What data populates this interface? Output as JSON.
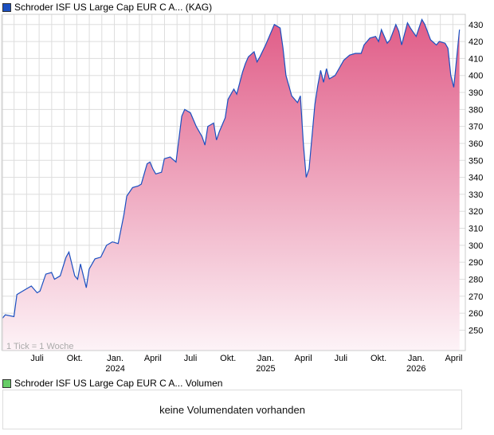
{
  "legend_price": "Schroder ISF US Large Cap EUR C A... (KAG)",
  "legend_volume": "Schroder ISF US Large Cap EUR C A... Volumen",
  "no_volume": "keine Volumendaten vorhanden",
  "colors": {
    "line": "#1a4fc0",
    "fill_top": "#e05c87",
    "fill_bottom": "#fdf3f7",
    "volume_swatch": "#66cc66",
    "grid": "#dddddd"
  },
  "chart_data": {
    "type": "area",
    "title": "Schroder ISF US Large Cap EUR C A... (KAG)",
    "annotation": "1 Tick = 1 Woche",
    "x_unit": "weeks since start",
    "xlim": [
      0,
      160
    ],
    "ylim": [
      238,
      436
    ],
    "yticks": [
      250,
      260,
      270,
      280,
      290,
      300,
      310,
      320,
      330,
      340,
      350,
      360,
      370,
      380,
      390,
      400,
      410,
      420,
      430
    ],
    "xticks": [
      {
        "w": 12,
        "label": "Juli",
        "year": ""
      },
      {
        "w": 25,
        "label": "Okt.",
        "year": ""
      },
      {
        "w": 39,
        "label": "Jan.",
        "year": "2024"
      },
      {
        "w": 52,
        "label": "April",
        "year": ""
      },
      {
        "w": 65,
        "label": "Juli",
        "year": ""
      },
      {
        "w": 78,
        "label": "Okt.",
        "year": ""
      },
      {
        "w": 91,
        "label": "Jan.",
        "year": "2025"
      },
      {
        "w": 104,
        "label": "April",
        "year": ""
      },
      {
        "w": 117,
        "label": "Juli",
        "year": ""
      },
      {
        "w": 130,
        "label": "Okt.",
        "year": ""
      },
      {
        "w": 143,
        "label": "Jan.",
        "year": "2026"
      },
      {
        "w": 156,
        "label": "April",
        "year": ""
      }
    ],
    "series": [
      {
        "name": "Schroder ISF US Large Cap EUR C A...",
        "points": [
          [
            0,
            257
          ],
          [
            1,
            259
          ],
          [
            4,
            258
          ],
          [
            5,
            271
          ],
          [
            7,
            273
          ],
          [
            10,
            276
          ],
          [
            12,
            272
          ],
          [
            13,
            273
          ],
          [
            15,
            283
          ],
          [
            17,
            284
          ],
          [
            18,
            280
          ],
          [
            20,
            282
          ],
          [
            22,
            293
          ],
          [
            23,
            296
          ],
          [
            25,
            282
          ],
          [
            26,
            280
          ],
          [
            27,
            289
          ],
          [
            29,
            275
          ],
          [
            30,
            286
          ],
          [
            32,
            292
          ],
          [
            34,
            293
          ],
          [
            36,
            300
          ],
          [
            38,
            302
          ],
          [
            40,
            301
          ],
          [
            42,
            318
          ],
          [
            43,
            329
          ],
          [
            45,
            334
          ],
          [
            47,
            335
          ],
          [
            48,
            336
          ],
          [
            50,
            348
          ],
          [
            51,
            349
          ],
          [
            52,
            345
          ],
          [
            53,
            342
          ],
          [
            55,
            343
          ],
          [
            56,
            351
          ],
          [
            58,
            352
          ],
          [
            60,
            349
          ],
          [
            62,
            376
          ],
          [
            63,
            380
          ],
          [
            65,
            378
          ],
          [
            67,
            370
          ],
          [
            69,
            364
          ],
          [
            70,
            359
          ],
          [
            71,
            370
          ],
          [
            73,
            372
          ],
          [
            74,
            362
          ],
          [
            75,
            367
          ],
          [
            77,
            375
          ],
          [
            78,
            386
          ],
          [
            80,
            392
          ],
          [
            81,
            389
          ],
          [
            83,
            402
          ],
          [
            84,
            407
          ],
          [
            85,
            411
          ],
          [
            87,
            414
          ],
          [
            88,
            408
          ],
          [
            89,
            411
          ],
          [
            91,
            418
          ],
          [
            93,
            426
          ],
          [
            94,
            430
          ],
          [
            96,
            428
          ],
          [
            97,
            416
          ],
          [
            98,
            400
          ],
          [
            100,
            388
          ],
          [
            102,
            384
          ],
          [
            103,
            388
          ],
          [
            104,
            360
          ],
          [
            105,
            340
          ],
          [
            106,
            345
          ],
          [
            108,
            383
          ],
          [
            109,
            394
          ],
          [
            110,
            403
          ],
          [
            111,
            396
          ],
          [
            112,
            404
          ],
          [
            113,
            398
          ],
          [
            115,
            400
          ],
          [
            117,
            406
          ],
          [
            118,
            409
          ],
          [
            120,
            412
          ],
          [
            122,
            413
          ],
          [
            124,
            413
          ],
          [
            125,
            418
          ],
          [
            127,
            422
          ],
          [
            129,
            423
          ],
          [
            130,
            420
          ],
          [
            131,
            427
          ],
          [
            133,
            419
          ],
          [
            134,
            421
          ],
          [
            136,
            430
          ],
          [
            137,
            426
          ],
          [
            138,
            418
          ],
          [
            140,
            431
          ],
          [
            141,
            428
          ],
          [
            143,
            423
          ],
          [
            145,
            433
          ],
          [
            146,
            430
          ],
          [
            148,
            421
          ],
          [
            150,
            418
          ],
          [
            151,
            420
          ],
          [
            153,
            419
          ],
          [
            154,
            416
          ],
          [
            155,
            400
          ],
          [
            156,
            393
          ],
          [
            158,
            427
          ]
        ]
      }
    ]
  }
}
